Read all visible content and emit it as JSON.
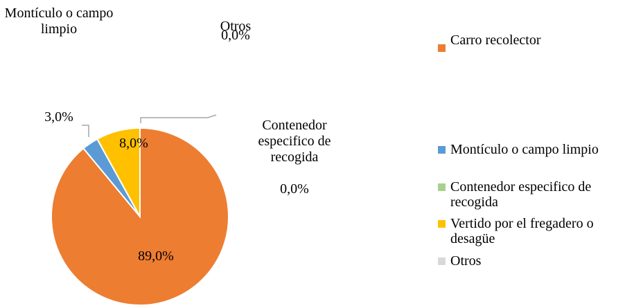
{
  "chart_data": {
    "type": "pie",
    "categories": [
      "Carro recolector",
      "Montículo o campo limpio",
      "Contenedor especifico de recogida",
      "Vertido por el fregadero o desagüe",
      "Otros"
    ],
    "values": [
      89,
      3,
      0,
      8,
      0
    ],
    "value_labels": [
      "89,0%",
      "3,0%",
      "0,0%",
      "8,0%",
      "0,0%"
    ],
    "colors": [
      "#ed7d31",
      "#5b9bd5",
      "#a9d18e",
      "#ffc000",
      "#d9d9d9"
    ],
    "legend": "right"
  }
}
